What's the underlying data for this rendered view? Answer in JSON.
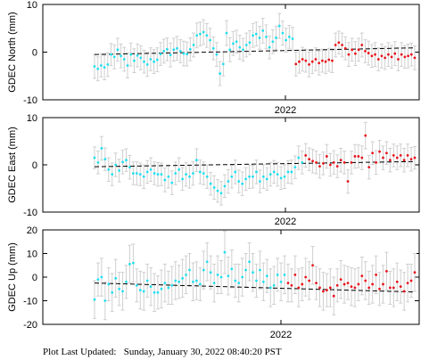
{
  "colors": {
    "past": "#22dff1",
    "recent": "#e8141c",
    "errorbar": "#cfcfcf",
    "trend": "#000000",
    "axes": "#000000"
  },
  "footer": {
    "label": "Plot Last Updated:",
    "timestamp": "Sunday, January 30, 2022 08:40:20 PST"
  },
  "chart_data": [
    {
      "type": "scatter",
      "ylabel": "GDEC North (mm)",
      "xtick_label": "2022",
      "ylim": [
        -10,
        10
      ],
      "yticks": [
        -10,
        0,
        10
      ],
      "grid": false,
      "trend": [
        -0.5,
        0.9
      ],
      "past": [
        [
          -3.0,
          2.5
        ],
        [
          -3.5,
          2.5
        ],
        [
          -2.8,
          2.4
        ],
        [
          -3.2,
          2.6
        ],
        [
          -2.6,
          2.5
        ],
        [
          -0.5,
          2.3
        ],
        [
          -1.0,
          2.5
        ],
        [
          0.5,
          2.4
        ],
        [
          -0.8,
          2.5
        ],
        [
          -1.5,
          2.5
        ],
        [
          -2.8,
          2.6
        ],
        [
          -0.5,
          2.4
        ],
        [
          -1.8,
          2.5
        ],
        [
          -0.7,
          2.4
        ],
        [
          -1.2,
          2.5
        ],
        [
          -2.0,
          2.4
        ],
        [
          -2.6,
          2.5
        ],
        [
          -1.5,
          2.4
        ],
        [
          -2.0,
          2.5
        ],
        [
          -1.6,
          2.5
        ],
        [
          -0.4,
          2.4
        ],
        [
          0.2,
          2.5
        ],
        [
          0.6,
          2.4
        ],
        [
          -0.6,
          2.5
        ],
        [
          0.5,
          2.4
        ],
        [
          0.8,
          2.5
        ],
        [
          0.2,
          2.4
        ],
        [
          -0.3,
          2.6
        ],
        [
          -0.4,
          2.5
        ],
        [
          0.6,
          2.4
        ],
        [
          1.5,
          2.5
        ],
        [
          3.5,
          2.6
        ],
        [
          3.8,
          2.5
        ],
        [
          4.2,
          2.6
        ],
        [
          3.5,
          2.5
        ],
        [
          2.5,
          2.5
        ],
        [
          0.8,
          2.4
        ],
        [
          -0.5,
          2.5
        ],
        [
          -4.5,
          2.5
        ],
        [
          -2.5,
          2.5
        ],
        [
          4.0,
          2.6
        ],
        [
          0.5,
          2.5
        ],
        [
          1.8,
          2.5
        ],
        [
          2.2,
          2.4
        ],
        [
          1.0,
          2.5
        ],
        [
          0.5,
          2.4
        ],
        [
          1.5,
          2.5
        ],
        [
          2.0,
          2.5
        ],
        [
          3.5,
          2.5
        ],
        [
          3.8,
          2.5
        ],
        [
          3.0,
          2.4
        ],
        [
          4.5,
          2.6
        ],
        [
          3.2,
          2.5
        ],
        [
          1.0,
          2.4
        ],
        [
          2.2,
          2.5
        ],
        [
          3.0,
          2.4
        ],
        [
          5.5,
          2.6
        ],
        [
          4.0,
          2.5
        ],
        [
          2.5,
          2.5
        ],
        [
          3.2,
          2.4
        ],
        [
          2.8,
          2.4
        ]
      ],
      "recent": [
        [
          -2.5,
          2.5
        ],
        [
          -2.0,
          2.4
        ],
        [
          -1.5,
          2.5
        ],
        [
          -1.8,
          2.4
        ],
        [
          -2.6,
          2.6
        ],
        [
          -2.0,
          2.5
        ],
        [
          -1.5,
          2.4
        ],
        [
          -2.3,
          2.5
        ],
        [
          -1.8,
          2.4
        ],
        [
          -2.0,
          2.5
        ],
        [
          -1.6,
          2.4
        ],
        [
          -1.8,
          2.5
        ],
        [
          1.5,
          2.5
        ],
        [
          2.0,
          2.4
        ],
        [
          1.5,
          2.5
        ],
        [
          0.8,
          2.4
        ],
        [
          -0.5,
          2.5
        ],
        [
          0.5,
          2.4
        ],
        [
          -0.3,
          2.5
        ],
        [
          0.5,
          2.4
        ],
        [
          1.5,
          2.5
        ],
        [
          0.2,
          2.4
        ],
        [
          -0.2,
          2.5
        ],
        [
          -0.8,
          2.4
        ],
        [
          -0.5,
          2.5
        ],
        [
          -1.5,
          2.4
        ],
        [
          -0.8,
          2.5
        ],
        [
          -1.2,
          2.4
        ],
        [
          -0.5,
          2.5
        ],
        [
          -1.0,
          2.4
        ],
        [
          -0.3,
          2.5
        ],
        [
          -1.5,
          2.4
        ],
        [
          -0.5,
          2.5
        ],
        [
          -1.0,
          2.4
        ],
        [
          -0.8,
          2.5
        ],
        [
          -0.5,
          2.4
        ],
        [
          -1.2,
          2.5
        ]
      ]
    },
    {
      "type": "scatter",
      "ylabel": "GDEC East (mm)",
      "xtick_label": "2022",
      "ylim": [
        -10,
        10
      ],
      "yticks": [
        -10,
        0,
        10
      ],
      "grid": false,
      "trend": [
        -0.4,
        0.7
      ],
      "past": [
        [
          1.5,
          2.3
        ],
        [
          0.5,
          2.4
        ],
        [
          3.5,
          2.5
        ],
        [
          1.2,
          2.4
        ],
        [
          -1.0,
          2.5
        ],
        [
          -2.0,
          2.4
        ],
        [
          0.0,
          2.5
        ],
        [
          -1.2,
          2.4
        ],
        [
          0.6,
          2.5
        ],
        [
          1.0,
          2.4
        ],
        [
          -0.5,
          2.5
        ],
        [
          -1.8,
          2.4
        ],
        [
          -1.8,
          2.5
        ],
        [
          -2.0,
          2.4
        ],
        [
          -2.5,
          2.5
        ],
        [
          -1.5,
          2.4
        ],
        [
          -1.0,
          2.5
        ],
        [
          -1.8,
          2.4
        ],
        [
          -2.0,
          2.5
        ],
        [
          -2.0,
          2.4
        ],
        [
          -3.2,
          2.5
        ],
        [
          -2.5,
          2.4
        ],
        [
          -3.8,
          2.5
        ],
        [
          -1.8,
          2.4
        ],
        [
          -1.0,
          2.5
        ],
        [
          -3.0,
          2.4
        ],
        [
          -2.0,
          2.5
        ],
        [
          -2.5,
          2.4
        ],
        [
          -1.8,
          2.5
        ],
        [
          1.0,
          2.4
        ],
        [
          -1.5,
          2.5
        ],
        [
          -1.8,
          2.4
        ],
        [
          -2.5,
          2.5
        ],
        [
          -4.0,
          2.4
        ],
        [
          -4.8,
          2.5
        ],
        [
          -5.5,
          2.4
        ],
        [
          -6.0,
          2.5
        ],
        [
          -4.5,
          2.4
        ],
        [
          -3.5,
          2.5
        ],
        [
          -2.5,
          2.4
        ],
        [
          -1.5,
          2.5
        ],
        [
          -3.5,
          2.4
        ],
        [
          -4.0,
          2.5
        ],
        [
          -3.0,
          2.4
        ],
        [
          -2.5,
          2.5
        ],
        [
          -2.5,
          2.4
        ],
        [
          -1.5,
          2.5
        ],
        [
          -3.5,
          2.4
        ],
        [
          -2.5,
          2.5
        ],
        [
          -3.0,
          2.4
        ],
        [
          -2.0,
          2.5
        ],
        [
          -1.5,
          2.4
        ],
        [
          -2.0,
          2.5
        ],
        [
          -2.8,
          2.4
        ],
        [
          -2.5,
          2.5
        ],
        [
          -1.5,
          2.4
        ],
        [
          -1.5,
          2.5
        ],
        [
          -0.5,
          2.4
        ],
        [
          1.5,
          2.5
        ],
        [
          0.5,
          2.4
        ]
      ],
      "recent": [
        [
          2.0,
          2.5
        ],
        [
          1.2,
          2.4
        ],
        [
          0.8,
          2.5
        ],
        [
          0.5,
          2.4
        ],
        [
          -0.3,
          2.5
        ],
        [
          0.3,
          2.4
        ],
        [
          1.8,
          2.5
        ],
        [
          0.0,
          2.4
        ],
        [
          0.5,
          2.5
        ],
        [
          -0.3,
          2.4
        ],
        [
          1.0,
          2.5
        ],
        [
          0.5,
          2.4
        ],
        [
          -3.5,
          2.5
        ],
        [
          0.5,
          2.4
        ],
        [
          1.8,
          2.5
        ],
        [
          1.8,
          2.4
        ],
        [
          1.5,
          2.5
        ],
        [
          6.2,
          2.8
        ],
        [
          -0.5,
          2.5
        ],
        [
          2.5,
          2.4
        ],
        [
          0.5,
          2.5
        ],
        [
          2.8,
          2.4
        ],
        [
          1.5,
          2.5
        ],
        [
          2.5,
          2.4
        ],
        [
          1.0,
          2.5
        ],
        [
          2.0,
          2.4
        ],
        [
          1.5,
          2.5
        ],
        [
          2.0,
          2.4
        ],
        [
          1.0,
          2.5
        ],
        [
          2.0,
          2.4
        ],
        [
          1.2,
          2.5
        ],
        [
          1.5,
          2.4
        ]
      ]
    },
    {
      "type": "scatter",
      "ylabel": "GDEC Up (mm)",
      "xtick_label": "2022",
      "ylim": [
        -20,
        20
      ],
      "yticks": [
        -20,
        -10,
        0,
        10,
        20
      ],
      "grid": false,
      "trend": [
        -2.5,
        -6.3
      ],
      "past": [
        [
          -9.5,
          8
        ],
        [
          -1.0,
          7
        ],
        [
          0.0,
          8
        ],
        [
          -10.0,
          8
        ],
        [
          -3.0,
          7
        ],
        [
          -6.5,
          8
        ],
        [
          -0.5,
          8
        ],
        [
          -5.0,
          7
        ],
        [
          -6.0,
          8
        ],
        [
          -2.0,
          7
        ],
        [
          5.5,
          8
        ],
        [
          6.0,
          8
        ],
        [
          -3.5,
          7
        ],
        [
          -5.5,
          8
        ],
        [
          -6.0,
          8
        ],
        [
          -1.5,
          7
        ],
        [
          -4.0,
          8
        ],
        [
          -6.5,
          8
        ],
        [
          -6.5,
          7
        ],
        [
          -5.0,
          8
        ],
        [
          -2.5,
          8
        ],
        [
          -4.5,
          7
        ],
        [
          -3.5,
          8
        ],
        [
          -1.5,
          8
        ],
        [
          -2.0,
          7
        ],
        [
          -0.5,
          8
        ],
        [
          1.0,
          8
        ],
        [
          3.0,
          7
        ],
        [
          -2.0,
          8
        ],
        [
          -1.5,
          8
        ],
        [
          -3.0,
          7
        ],
        [
          3.0,
          8
        ],
        [
          6.5,
          8
        ],
        [
          2.0,
          7
        ],
        [
          -2.5,
          8
        ],
        [
          1.0,
          8
        ],
        [
          0.0,
          7
        ],
        [
          10.5,
          9
        ],
        [
          0.5,
          8
        ],
        [
          3.5,
          8
        ],
        [
          -1.5,
          7
        ],
        [
          -2.5,
          8
        ],
        [
          0.0,
          8
        ],
        [
          3.0,
          7
        ],
        [
          6.5,
          8
        ],
        [
          2.0,
          8
        ],
        [
          -1.5,
          7
        ],
        [
          3.0,
          8
        ],
        [
          -2.0,
          8
        ],
        [
          0.5,
          7
        ],
        [
          -4.5,
          8
        ],
        [
          -3.5,
          8
        ],
        [
          1.0,
          7
        ],
        [
          -2.0,
          8
        ],
        [
          1.0,
          8
        ]
      ],
      "recent": [
        [
          -2.5,
          8
        ],
        [
          -3.5,
          7
        ],
        [
          1.0,
          8
        ],
        [
          -4.5,
          8
        ],
        [
          -3.0,
          7
        ],
        [
          0.0,
          8
        ],
        [
          -1.5,
          8
        ],
        [
          5.0,
          8
        ],
        [
          -2.5,
          7
        ],
        [
          -4.5,
          8
        ],
        [
          -6.0,
          8
        ],
        [
          -5.5,
          7
        ],
        [
          -4.5,
          8
        ],
        [
          -8.0,
          8
        ],
        [
          -3.5,
          7
        ],
        [
          -1.0,
          8
        ],
        [
          -3.0,
          8
        ],
        [
          -2.5,
          7
        ],
        [
          -4.0,
          8
        ],
        [
          -4.5,
          8
        ],
        [
          -3.0,
          7
        ],
        [
          0.5,
          8
        ],
        [
          -1.5,
          8
        ],
        [
          -4.5,
          7
        ],
        [
          -3.0,
          8
        ],
        [
          1.0,
          8
        ],
        [
          -5.0,
          7
        ],
        [
          -3.0,
          8
        ],
        [
          2.5,
          8
        ],
        [
          -4.5,
          7
        ],
        [
          -4.5,
          8
        ],
        [
          -2.0,
          8
        ],
        [
          -4.0,
          7
        ],
        [
          -6.0,
          8
        ],
        [
          -2.5,
          8
        ],
        [
          -1.5,
          7
        ],
        [
          2.0,
          8
        ]
      ]
    }
  ]
}
